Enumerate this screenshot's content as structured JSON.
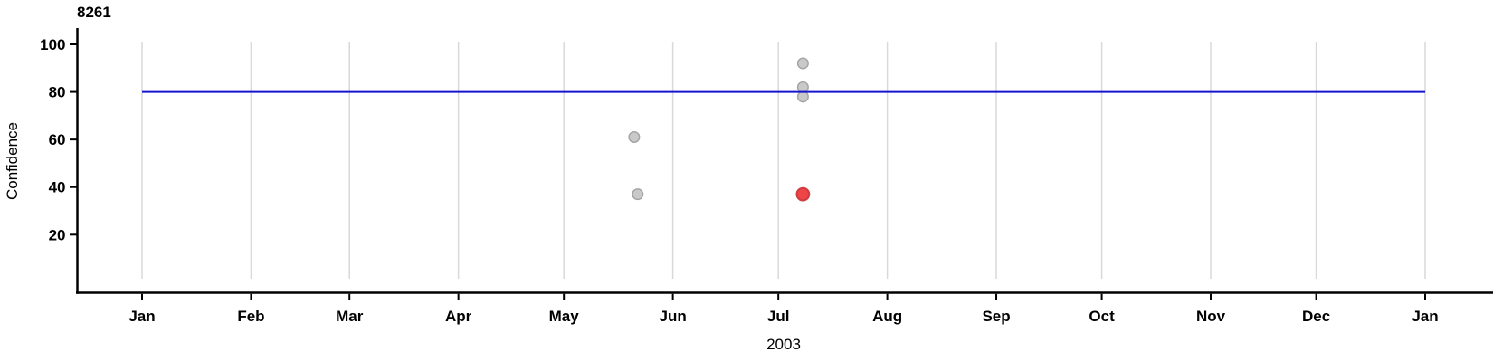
{
  "chart": {
    "title": "8261",
    "ylabel": "Confidence",
    "xlabel": "2003"
  },
  "chart_data": {
    "type": "scatter",
    "title": "8261",
    "xlabel": "2003",
    "ylabel": "Confidence",
    "x_axis": {
      "kind": "time",
      "start": "2003-01-01",
      "end": "2004-01-01",
      "tick_labels": [
        "Jan",
        "Feb",
        "Mar",
        "Apr",
        "May",
        "Jun",
        "Jul",
        "Aug",
        "Sep",
        "Oct",
        "Nov",
        "Dec",
        "Jan"
      ],
      "tick_days": [
        0,
        31,
        59,
        90,
        120,
        151,
        181,
        212,
        243,
        273,
        304,
        334,
        365
      ],
      "year_label": "2003"
    },
    "y_axis": {
      "label": "Confidence",
      "ticks": [
        20,
        40,
        60,
        80,
        100
      ]
    },
    "grid": "vertical-monthly",
    "legend": "none",
    "reference_line": {
      "value": 80
    },
    "points": [
      {
        "date": "2003-05-21",
        "day_of_year": 140,
        "confidence": 61,
        "series": "default"
      },
      {
        "date": "2003-05-22",
        "day_of_year": 141,
        "confidence": 37,
        "series": "default"
      },
      {
        "date": "2003-07-08",
        "day_of_year": 188,
        "confidence": 92,
        "series": "default"
      },
      {
        "date": "2003-07-08",
        "day_of_year": 188,
        "confidence": 82,
        "series": "default"
      },
      {
        "date": "2003-07-08",
        "day_of_year": 188,
        "confidence": 78,
        "series": "default"
      },
      {
        "date": "2003-07-08",
        "day_of_year": 188,
        "confidence": 37,
        "series": "highlight"
      }
    ]
  },
  "colors": {
    "background": "#ffffff",
    "axis": "#000000",
    "grid": "#d9d9d9",
    "reference_line": "#1515cd",
    "point_default_fill": "#c9c9c9",
    "point_default_stroke": "#a3a3a3",
    "point_highlight_fill": "#ee4548",
    "point_highlight_stroke": "#d13c40"
  }
}
